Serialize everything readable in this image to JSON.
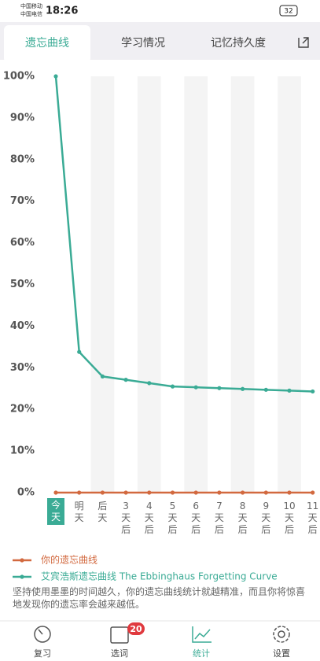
{
  "status_bar": {
    "carrier_1": "中国移动",
    "carrier_2": "中国电信",
    "time": "18:26",
    "battery": "32"
  },
  "tabs": [
    "遗忘曲线",
    "学习情况",
    "记忆持久度"
  ],
  "chart_data": {
    "type": "line",
    "categories": [
      "今天",
      "明天",
      "后天",
      "3天后",
      "4天后",
      "5天后",
      "6天后",
      "7天后",
      "8天后",
      "9天后",
      "10天后",
      "11天后"
    ],
    "series": [
      {
        "name": "你的遗忘曲线",
        "color": "#d2693f",
        "values": [
          0,
          0,
          0,
          0,
          0,
          0,
          0,
          0,
          0,
          0,
          0,
          0
        ]
      },
      {
        "name": "艾宾浩斯遗忘曲线 The Ebbinghaus Forgetting Curve",
        "color": "#3aab95",
        "values": [
          100,
          33.8,
          27.9,
          27.1,
          26.3,
          25.5,
          25.3,
          25.1,
          24.9,
          24.7,
          24.5,
          24.3
        ]
      }
    ],
    "ylim": [
      0,
      100
    ],
    "yticks": [
      {
        "value": 0,
        "label": "0%"
      },
      {
        "value": 10,
        "label": "10%"
      },
      {
        "value": 20,
        "label": "20%"
      },
      {
        "value": 30,
        "label": "30%"
      },
      {
        "value": 40,
        "label": "40%"
      },
      {
        "value": 50,
        "label": "50%"
      },
      {
        "value": 60,
        "label": "60%"
      },
      {
        "value": 70,
        "label": "70%"
      },
      {
        "value": 80,
        "label": "80%"
      },
      {
        "value": 90,
        "label": "90%"
      },
      {
        "value": 100,
        "label": "100%"
      }
    ]
  },
  "note": "坚持使用墨墨的时间越久，你的遗忘曲线统计就越精准，而且你将惊喜地发现你的遗忘率会越来越低。",
  "bottom_nav": {
    "items": [
      "复习",
      "选词",
      "统计",
      "设置"
    ],
    "badge": "20"
  }
}
